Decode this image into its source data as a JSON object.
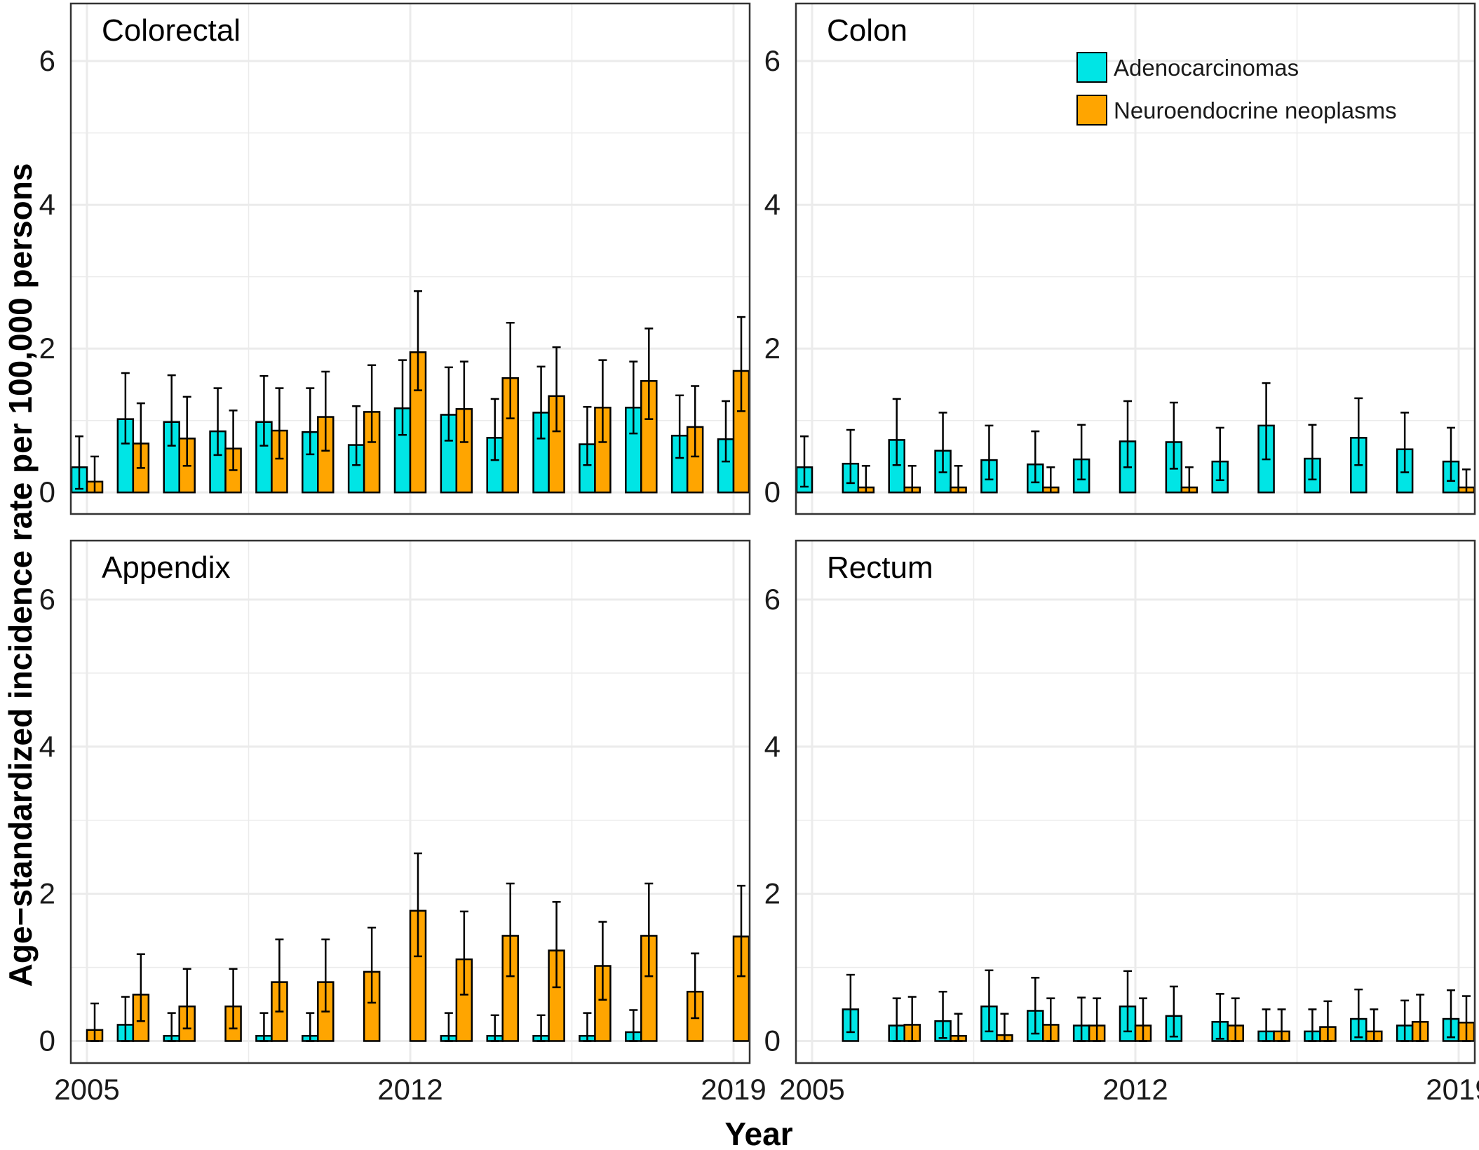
{
  "colors": {
    "adenocarcinomas": "#00e5e5",
    "neuroendocrine": "#ffa500",
    "grid": "#ebebeb",
    "border": "#333333"
  },
  "axes": {
    "ylabel": "Age−standardized incidence rate per 100,000 persons",
    "xlabel": "Year",
    "y_ticks": [
      "0",
      "2",
      "4",
      "6"
    ],
    "x_ticks": [
      "2005",
      "2012",
      "2019"
    ]
  },
  "legend": {
    "items": [
      {
        "label": "Adenocarcinomas",
        "key": "adenocarcinomas"
      },
      {
        "label": "Neuroendocrine neoplasms",
        "key": "neuroendocrine"
      }
    ]
  },
  "chart_data": [
    {
      "type": "bar",
      "title": "Colorectal",
      "categories": [
        2005,
        2006,
        2007,
        2008,
        2009,
        2010,
        2011,
        2012,
        2013,
        2014,
        2015,
        2016,
        2017,
        2018,
        2019
      ],
      "xlabel": "Year",
      "ylabel": "Age−standardized incidence rate per 100,000 persons",
      "ylim": [
        -0.3,
        6.8
      ],
      "series": [
        {
          "name": "Adenocarcinomas",
          "values": [
            0.35,
            1.02,
            0.98,
            0.85,
            0.98,
            0.84,
            0.66,
            1.17,
            1.08,
            0.76,
            1.11,
            0.67,
            1.18,
            0.79,
            0.74
          ],
          "lower": [
            0.05,
            0.68,
            0.65,
            0.52,
            0.65,
            0.53,
            0.38,
            0.8,
            0.72,
            0.45,
            0.75,
            0.38,
            0.82,
            0.48,
            0.43
          ],
          "upper": [
            0.78,
            1.66,
            1.63,
            1.45,
            1.62,
            1.45,
            1.2,
            1.84,
            1.74,
            1.3,
            1.75,
            1.19,
            1.82,
            1.35,
            1.27
          ]
        },
        {
          "name": "Neuroendocrine neoplasms",
          "values": [
            0.15,
            0.68,
            0.75,
            0.61,
            0.86,
            1.05,
            1.12,
            1.95,
            1.16,
            1.59,
            1.34,
            1.18,
            1.55,
            0.91,
            1.69
          ],
          "lower": [
            0.0,
            0.34,
            0.37,
            0.31,
            0.47,
            0.58,
            0.7,
            1.42,
            0.7,
            1.03,
            0.85,
            0.7,
            1.02,
            0.5,
            1.13
          ],
          "upper": [
            0.5,
            1.24,
            1.33,
            1.14,
            1.45,
            1.68,
            1.77,
            2.8,
            1.82,
            2.36,
            2.02,
            1.84,
            2.28,
            1.48,
            2.44
          ]
        }
      ]
    },
    {
      "type": "bar",
      "title": "Colon",
      "categories": [
        2005,
        2006,
        2007,
        2008,
        2009,
        2010,
        2011,
        2012,
        2013,
        2014,
        2015,
        2016,
        2017,
        2018,
        2019
      ],
      "xlabel": "Year",
      "ylabel": "Age−standardized incidence rate per 100,000 persons",
      "ylim": [
        -0.3,
        6.8
      ],
      "series": [
        {
          "name": "Adenocarcinomas",
          "values": [
            0.35,
            0.4,
            0.73,
            0.58,
            0.45,
            0.39,
            0.46,
            0.71,
            0.7,
            0.43,
            0.93,
            0.47,
            0.76,
            0.6,
            0.43
          ],
          "lower": [
            0.08,
            0.13,
            0.38,
            0.28,
            0.18,
            0.14,
            0.18,
            0.35,
            0.33,
            0.17,
            0.46,
            0.18,
            0.38,
            0.28,
            0.16
          ],
          "upper": [
            0.78,
            0.87,
            1.3,
            1.11,
            0.93,
            0.85,
            0.94,
            1.27,
            1.25,
            0.9,
            1.52,
            0.94,
            1.31,
            1.11,
            0.9
          ]
        },
        {
          "name": "Neuroendocrine neoplasms",
          "values": [
            0.0,
            0.07,
            0.07,
            0.07,
            0.0,
            0.07,
            0.0,
            0.0,
            0.07,
            0.0,
            0.0,
            0.0,
            0.0,
            0.0,
            0.07
          ],
          "lower": [
            0.0,
            0.0,
            0.0,
            0.0,
            0.0,
            0.0,
            0.0,
            0.0,
            0.0,
            0.0,
            0.0,
            0.0,
            0.0,
            0.0,
            0.0
          ],
          "upper": [
            0.0,
            0.37,
            0.37,
            0.37,
            0.0,
            0.35,
            0.0,
            0.0,
            0.35,
            0.0,
            0.0,
            0.0,
            0.0,
            0.0,
            0.32
          ]
        }
      ]
    },
    {
      "type": "bar",
      "title": "Appendix",
      "categories": [
        2005,
        2006,
        2007,
        2008,
        2009,
        2010,
        2011,
        2012,
        2013,
        2014,
        2015,
        2016,
        2017,
        2018,
        2019
      ],
      "xlabel": "Year",
      "ylabel": "Age−standardized incidence rate per 100,000 persons",
      "ylim": [
        -0.3,
        6.8
      ],
      "series": [
        {
          "name": "Adenocarcinomas",
          "values": [
            0.0,
            0.22,
            0.07,
            0.0,
            0.07,
            0.07,
            0.0,
            0.0,
            0.07,
            0.07,
            0.07,
            0.07,
            0.12,
            0.0,
            0.0
          ],
          "lower": [
            0.0,
            0.0,
            0.0,
            0.0,
            0.0,
            0.0,
            0.0,
            0.0,
            0.0,
            0.0,
            0.0,
            0.0,
            0.0,
            0.0,
            0.0
          ],
          "upper": [
            0.0,
            0.6,
            0.38,
            0.0,
            0.38,
            0.38,
            0.0,
            0.0,
            0.38,
            0.35,
            0.35,
            0.38,
            0.42,
            0.0,
            0.0
          ]
        },
        {
          "name": "Neuroendocrine neoplasms",
          "values": [
            0.15,
            0.63,
            0.47,
            0.47,
            0.8,
            0.8,
            0.94,
            1.77,
            1.11,
            1.43,
            1.23,
            1.02,
            1.43,
            0.67,
            1.42
          ],
          "lower": [
            0.0,
            0.27,
            0.17,
            0.17,
            0.4,
            0.4,
            0.52,
            1.15,
            0.63,
            0.88,
            0.73,
            0.56,
            0.88,
            0.31,
            0.88
          ],
          "upper": [
            0.51,
            1.18,
            0.98,
            0.98,
            1.38,
            1.38,
            1.54,
            2.55,
            1.76,
            2.14,
            1.89,
            1.62,
            2.14,
            1.19,
            2.11
          ]
        }
      ]
    },
    {
      "type": "bar",
      "title": "Rectum",
      "categories": [
        2005,
        2006,
        2007,
        2008,
        2009,
        2010,
        2011,
        2012,
        2013,
        2014,
        2015,
        2016,
        2017,
        2018,
        2019
      ],
      "xlabel": "Year",
      "ylabel": "Age−standardized incidence rate per 100,000 persons",
      "ylim": [
        -0.3,
        6.8
      ],
      "series": [
        {
          "name": "Adenocarcinomas",
          "values": [
            0.0,
            0.43,
            0.21,
            0.27,
            0.47,
            0.41,
            0.21,
            0.47,
            0.34,
            0.26,
            0.13,
            0.13,
            0.3,
            0.21,
            0.3
          ],
          "lower": [
            0.0,
            0.12,
            0.0,
            0.04,
            0.13,
            0.1,
            0.0,
            0.13,
            0.06,
            0.03,
            0.0,
            0.0,
            0.05,
            0.0,
            0.05
          ],
          "upper": [
            0.0,
            0.9,
            0.58,
            0.67,
            0.96,
            0.86,
            0.59,
            0.95,
            0.74,
            0.64,
            0.43,
            0.43,
            0.7,
            0.55,
            0.69
          ]
        },
        {
          "name": "Neuroendocrine neoplasms",
          "values": [
            0.0,
            0.0,
            0.22,
            0.07,
            0.08,
            0.22,
            0.21,
            0.21,
            0.0,
            0.21,
            0.13,
            0.19,
            0.13,
            0.26,
            0.25
          ],
          "lower": [
            0.0,
            0.0,
            0.0,
            0.0,
            0.0,
            0.0,
            0.0,
            0.0,
            0.0,
            0.0,
            0.0,
            0.0,
            0.0,
            0.0,
            0.0
          ],
          "upper": [
            0.0,
            0.0,
            0.6,
            0.37,
            0.37,
            0.58,
            0.58,
            0.58,
            0.0,
            0.58,
            0.43,
            0.54,
            0.43,
            0.63,
            0.61
          ]
        }
      ]
    }
  ]
}
